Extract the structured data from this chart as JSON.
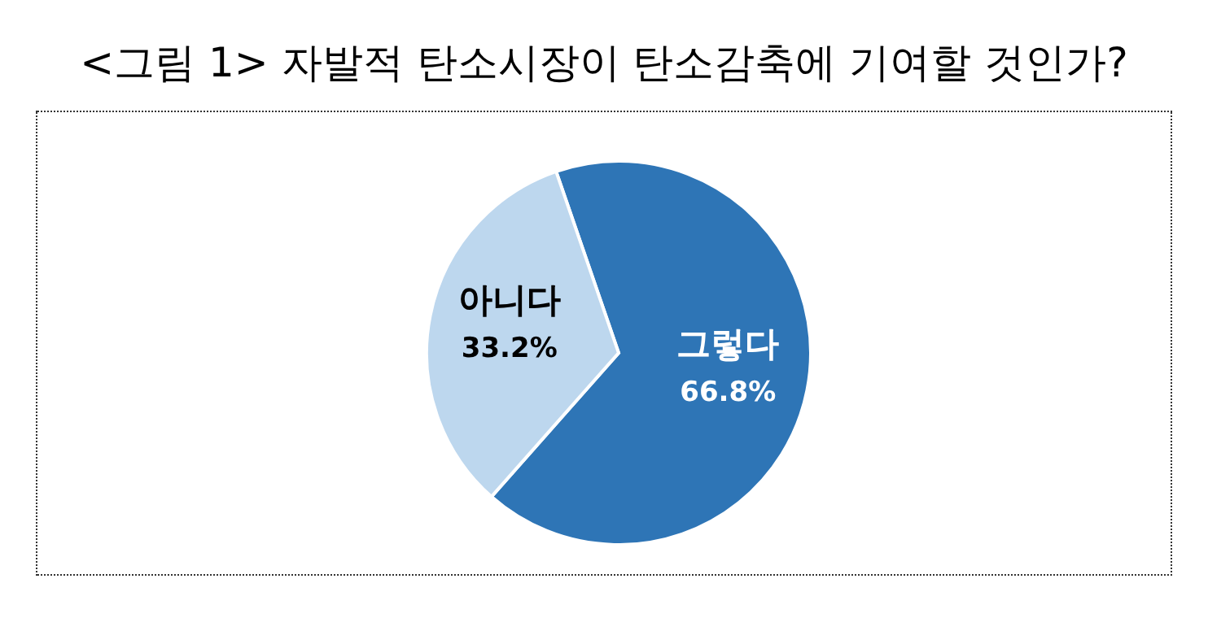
{
  "chart_data": {
    "type": "pie",
    "title": "<그림 1> 자발적 탄소시장이 탄소감축에 기여할 것인가?",
    "categories": [
      "그렇다",
      "아니다"
    ],
    "values": [
      66.8,
      33.2
    ],
    "colors": [
      "#2e75b6",
      "#bdd7ee"
    ],
    "value_labels": [
      "66.8%",
      "33.2%"
    ],
    "legend": false
  }
}
